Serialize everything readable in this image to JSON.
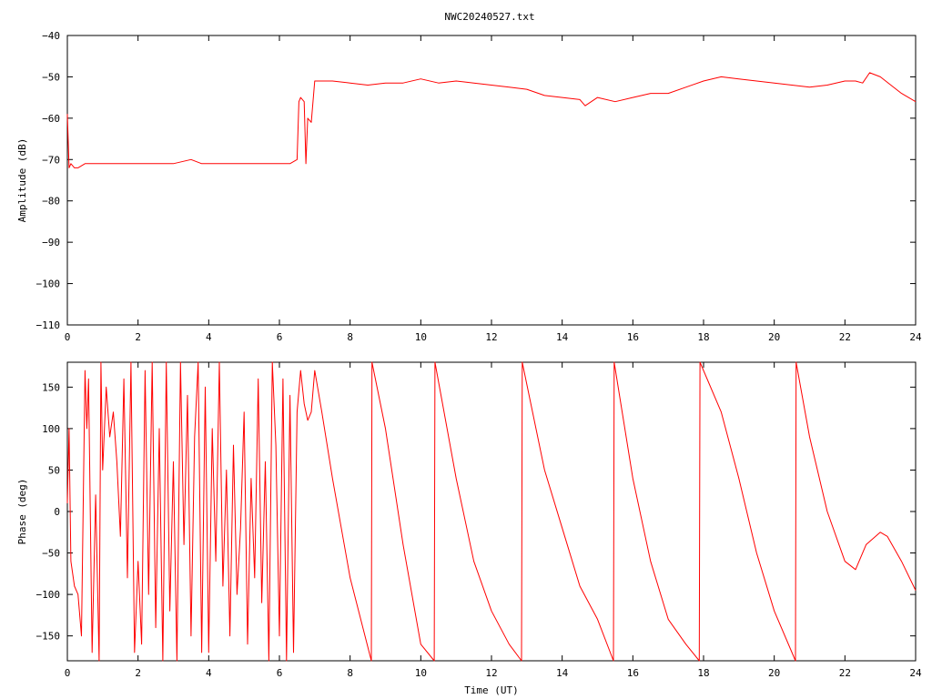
{
  "title": "NWC20240527.txt",
  "colors": {
    "series": "#ff0000",
    "frame": "#000000",
    "background": "#ffffff"
  },
  "chart_data": [
    {
      "type": "line",
      "ylabel": "Amplitude (dB)",
      "xlabel": "",
      "xlim": [
        0,
        24
      ],
      "ylim": [
        -110,
        -40
      ],
      "xticks": [
        0,
        2,
        4,
        6,
        8,
        10,
        12,
        14,
        16,
        18,
        20,
        22,
        24
      ],
      "yticks": [
        -110,
        -100,
        -90,
        -80,
        -70,
        -60,
        -50,
        -40
      ],
      "grid": false,
      "x": [
        0,
        0.05,
        0.1,
        0.2,
        0.3,
        0.5,
        0.8,
        1.0,
        1.5,
        2.0,
        2.5,
        3.0,
        3.5,
        3.8,
        4.0,
        4.5,
        5.0,
        5.5,
        6.0,
        6.3,
        6.5,
        6.55,
        6.6,
        6.7,
        6.75,
        6.8,
        6.9,
        7.0,
        7.2,
        7.5,
        8.0,
        8.5,
        9.0,
        9.5,
        10.0,
        10.5,
        11.0,
        11.5,
        12.0,
        12.5,
        13.0,
        13.5,
        14.0,
        14.5,
        14.65,
        15.0,
        15.5,
        16.0,
        16.5,
        17.0,
        17.5,
        18.0,
        18.5,
        19.0,
        19.5,
        20.0,
        20.5,
        21.0,
        21.5,
        22.0,
        22.3,
        22.5,
        22.7,
        23.0,
        23.3,
        23.6,
        24.0
      ],
      "values": [
        -59,
        -72,
        -71,
        -72,
        -72,
        -71,
        -71,
        -71,
        -71,
        -71,
        -71,
        -71,
        -70,
        -71,
        -71,
        -71,
        -71,
        -71,
        -71,
        -71,
        -70,
        -56,
        -55,
        -56,
        -71,
        -60,
        -61,
        -51,
        -51,
        -51,
        -51.5,
        -52,
        -51.5,
        -51.5,
        -50.5,
        -51.5,
        -51,
        -51.5,
        -52,
        -52.5,
        -53,
        -54.5,
        -55,
        -55.5,
        -57,
        -55,
        -56,
        -55,
        -54,
        -54,
        -52.5,
        -51,
        -50,
        -50.5,
        -51,
        -51.5,
        -52,
        -52.5,
        -52,
        -51,
        -51,
        -51.5,
        -49,
        -50,
        -52,
        -54,
        -56
      ]
    },
    {
      "type": "line",
      "ylabel": "Phase (deg)",
      "xlabel": "Time (UT)",
      "xlim": [
        0,
        24
      ],
      "ylim": [
        -180,
        180
      ],
      "xticks": [
        0,
        2,
        4,
        6,
        8,
        10,
        12,
        14,
        16,
        18,
        20,
        22,
        24
      ],
      "yticks": [
        -150,
        -100,
        -50,
        0,
        50,
        100,
        150
      ],
      "grid": false,
      "x": [
        0,
        0.05,
        0.1,
        0.2,
        0.3,
        0.4,
        0.5,
        0.55,
        0.6,
        0.7,
        0.8,
        0.9,
        0.95,
        1.0,
        1.1,
        1.2,
        1.3,
        1.4,
        1.5,
        1.6,
        1.7,
        1.8,
        1.9,
        2.0,
        2.1,
        2.2,
        2.3,
        2.4,
        2.5,
        2.6,
        2.7,
        2.8,
        2.9,
        3.0,
        3.1,
        3.2,
        3.3,
        3.4,
        3.5,
        3.6,
        3.7,
        3.8,
        3.9,
        4.0,
        4.1,
        4.2,
        4.3,
        4.4,
        4.5,
        4.6,
        4.7,
        4.8,
        4.9,
        5.0,
        5.1,
        5.2,
        5.3,
        5.4,
        5.5,
        5.6,
        5.7,
        5.8,
        5.9,
        6.0,
        6.1,
        6.2,
        6.3,
        6.4,
        6.5,
        6.6,
        6.7,
        6.8,
        6.9,
        7.0,
        7.2,
        7.5,
        8.0,
        8.6,
        8.62,
        9.0,
        9.5,
        10.0,
        10.38,
        10.4,
        11.0,
        11.5,
        12.0,
        12.5,
        12.85,
        12.87,
        13.5,
        14.0,
        14.5,
        15.0,
        15.45,
        15.47,
        16.0,
        16.5,
        17.0,
        17.5,
        17.88,
        17.9,
        18.5,
        19.0,
        19.5,
        20.0,
        20.6,
        20.62,
        21.0,
        21.5,
        22.0,
        22.3,
        22.6,
        23.0,
        23.2,
        23.6,
        24.0
      ],
      "values": [
        10,
        100,
        -60,
        -90,
        -100,
        -150,
        170,
        100,
        160,
        -170,
        20,
        -180,
        180,
        50,
        150,
        90,
        120,
        60,
        -30,
        160,
        -80,
        180,
        -170,
        -60,
        -160,
        170,
        -100,
        180,
        -140,
        100,
        -180,
        180,
        -120,
        60,
        -180,
        180,
        -40,
        140,
        -150,
        90,
        180,
        -170,
        150,
        -170,
        100,
        -60,
        180,
        -90,
        50,
        -150,
        80,
        -100,
        -20,
        120,
        -160,
        40,
        -80,
        160,
        -110,
        60,
        -180,
        180,
        80,
        -150,
        160,
        -180,
        140,
        -170,
        120,
        170,
        130,
        110,
        120,
        170,
        120,
        40,
        -80,
        -180,
        180,
        100,
        -40,
        -160,
        -180,
        180,
        40,
        -60,
        -120,
        -160,
        -180,
        180,
        50,
        -20,
        -90,
        -130,
        -180,
        180,
        40,
        -60,
        -130,
        -160,
        -180,
        180,
        120,
        40,
        -50,
        -120,
        -180,
        180,
        90,
        0,
        -60,
        -70,
        -40,
        -25,
        -30,
        -60,
        -95
      ]
    }
  ]
}
